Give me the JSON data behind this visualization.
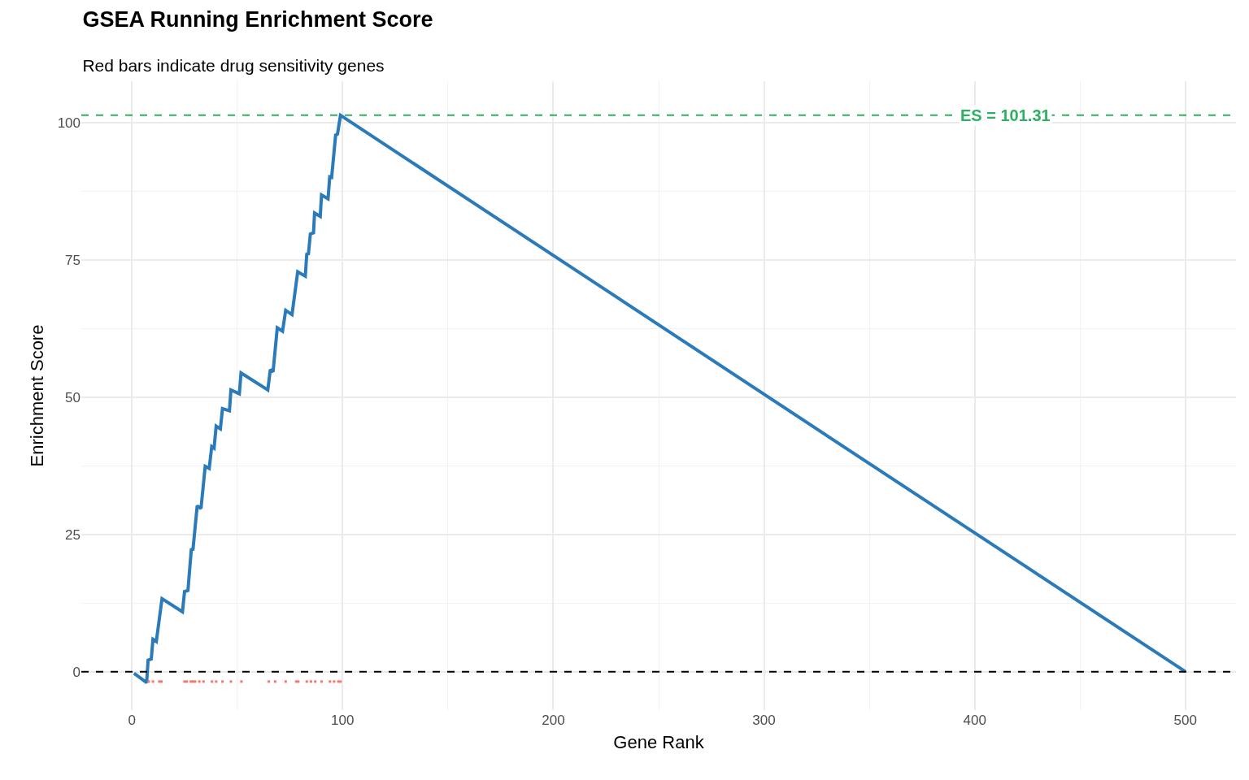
{
  "chart_data": {
    "type": "line",
    "title": "GSEA Running Enrichment Score",
    "subtitle": "Red bars indicate drug sensitivity genes",
    "xlabel": "Gene Rank",
    "ylabel": "Enrichment Score",
    "xlim": [
      -24,
      524
    ],
    "ylim": [
      -7,
      107.5
    ],
    "xticks": [
      0,
      100,
      200,
      300,
      400,
      500
    ],
    "yticks": [
      0,
      25,
      50,
      75,
      100
    ],
    "grid": true,
    "series": [
      {
        "color": "#2b7bba",
        "x": [
          1,
          7,
          7.7,
          9.2,
          10,
          11.6,
          14.3,
          24,
          25,
          26.6,
          28.2,
          29,
          31,
          32.8,
          34.8,
          36.7,
          37.9,
          39,
          40,
          42,
          43,
          46.3,
          47,
          51,
          51.8,
          64.5,
          65.7,
          67,
          69,
          71.5,
          73,
          76,
          78.7,
          82.3,
          83,
          83.8,
          84.7,
          86.2,
          86.7,
          89.4,
          90,
          93.1,
          93.9,
          94.8,
          96.7,
          97.6,
          99,
          500
        ],
        "values": [
          -0.3,
          -2,
          2.1,
          2.3,
          5.9,
          5.5,
          13.3,
          10.9,
          14.6,
          14.8,
          22.2,
          22.3,
          30.2,
          29.7,
          37.4,
          37,
          41,
          40.7,
          44.7,
          44.2,
          47.9,
          47.5,
          51.3,
          50.6,
          54.4,
          51.3,
          55,
          54.6,
          62.6,
          62,
          65.8,
          65,
          72.8,
          72,
          76,
          76.1,
          79.7,
          79.9,
          83.5,
          82.9,
          86.8,
          86.1,
          90.1,
          90,
          97.7,
          97.9,
          101.3,
          0
        ]
      },
      {
        "type": "scatter",
        "marker": "square",
        "color": "#f8766d",
        "x": [
          8,
          10,
          13,
          14,
          25,
          26,
          28,
          29,
          30,
          32,
          34,
          38,
          40,
          43,
          47,
          52,
          65,
          68,
          73,
          78,
          79,
          83,
          85,
          87,
          90,
          94,
          96,
          98,
          99
        ],
        "values": [
          -1.8,
          -1.8,
          -1.8,
          -1.8,
          -1.8,
          -1.8,
          -1.8,
          -1.8,
          -1.8,
          -1.8,
          -1.8,
          -1.8,
          -1.8,
          -1.8,
          -1.8,
          -1.8,
          -1.8,
          -1.8,
          -1.8,
          -1.8,
          -1.8,
          -1.8,
          -1.8,
          -1.8,
          -1.8,
          -1.8,
          -1.8,
          -1.8,
          -1.8
        ]
      }
    ],
    "ref_lines": [
      {
        "axis": "y",
        "value": 0,
        "color": "#000000",
        "line_style": "dashed"
      },
      {
        "axis": "y",
        "value": 101.31,
        "label": "ES = 101.31",
        "color": "#2eb062",
        "line_style": "dashed"
      }
    ]
  }
}
